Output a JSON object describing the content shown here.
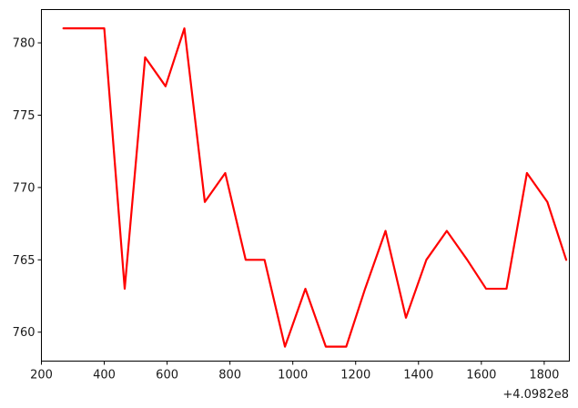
{
  "chart_data": {
    "type": "line",
    "title": "",
    "xlabel": "",
    "ylabel": "",
    "x_offset_label": "+4.0982e8",
    "xlim": [
      200,
      1880
    ],
    "ylim": [
      758,
      782.3
    ],
    "grid": false,
    "x_ticks": [
      200,
      400,
      600,
      800,
      1000,
      1200,
      1400,
      1600,
      1800
    ],
    "x_tick_labels": [
      "200",
      "400",
      "600",
      "800",
      "1000",
      "1200",
      "1400",
      "1600",
      "1800"
    ],
    "y_ticks": [
      760,
      765,
      770,
      775,
      780
    ],
    "y_tick_labels": [
      "760",
      "765",
      "770",
      "775",
      "780"
    ],
    "series": [
      {
        "color": "#ff0000",
        "x": [
          270,
          335,
          400,
          465,
          530,
          595,
          655,
          720,
          785,
          850,
          910,
          975,
          1040,
          1105,
          1170,
          1230,
          1295,
          1360,
          1425,
          1490,
          1555,
          1615,
          1680,
          1745,
          1810,
          1870
        ],
        "y": [
          781,
          781,
          781,
          763,
          779,
          777,
          781,
          769,
          771,
          765,
          765,
          759,
          763,
          759,
          759,
          763,
          767,
          761,
          765,
          767,
          765,
          763,
          763,
          771,
          769,
          765
        ]
      }
    ]
  }
}
